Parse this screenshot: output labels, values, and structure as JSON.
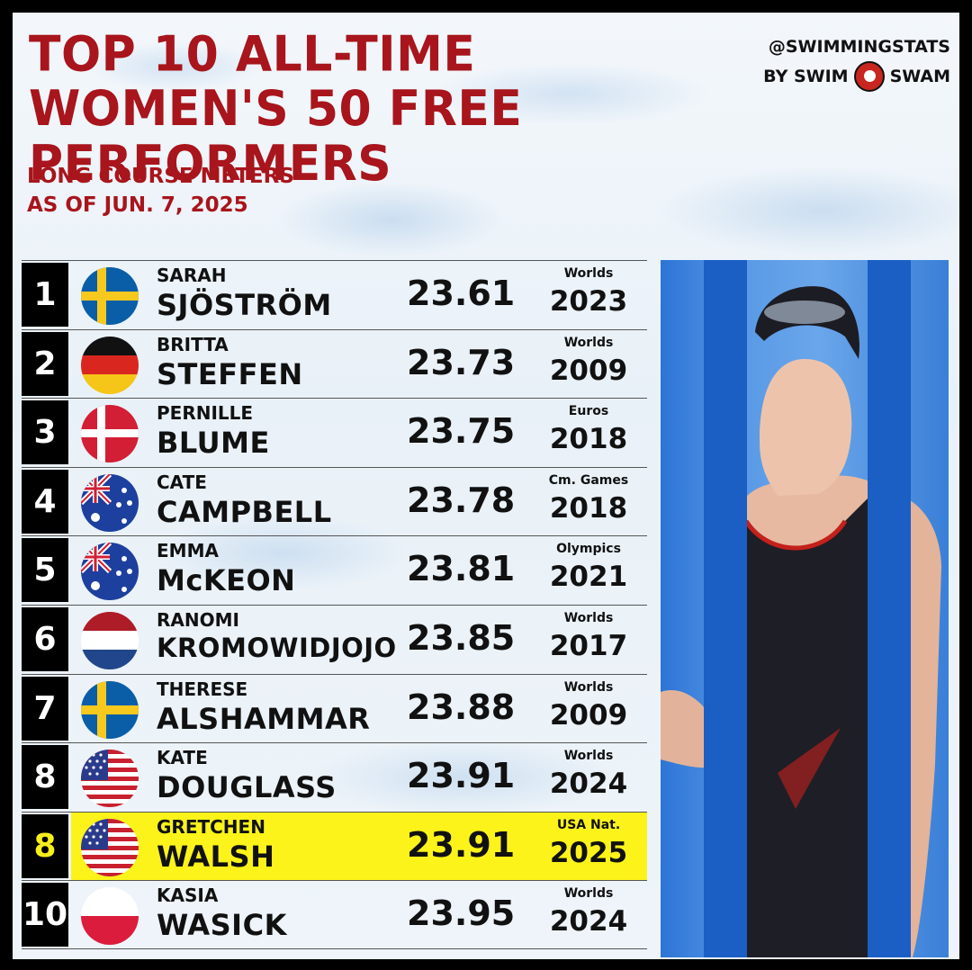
{
  "header": {
    "title_line1": "TOP 10 ALL-TIME",
    "title_line2": "WOMEN'S 50 FREE PERFORMERS",
    "subtitle_line1": "LONG COURSE METERS",
    "subtitle_line2": "AS OF JUN. 7, 2025"
  },
  "brand": {
    "handle": "@SWIMMINGSTATS",
    "by": "BY SWIM",
    "swam": "SWAM"
  },
  "colors": {
    "title_red": "#a8151c",
    "highlight_yellow": "#fbf31a",
    "rank_box": "#000000"
  },
  "rows": [
    {
      "rank": "1",
      "first": "SARAH",
      "last": "SJÖSTRÖM",
      "time": "23.61",
      "meet": "Worlds",
      "year": "2023",
      "flag": "sweden-flag-icon",
      "highlight": false
    },
    {
      "rank": "2",
      "first": "BRITTA",
      "last": "STEFFEN",
      "time": "23.73",
      "meet": "Worlds",
      "year": "2009",
      "flag": "germany-flag-icon",
      "highlight": false
    },
    {
      "rank": "3",
      "first": "PERNILLE",
      "last": "BLUME",
      "time": "23.75",
      "meet": "Euros",
      "year": "2018",
      "flag": "denmark-flag-icon",
      "highlight": false
    },
    {
      "rank": "4",
      "first": "CATE",
      "last": "CAMPBELL",
      "time": "23.78",
      "meet": "Cm. Games",
      "year": "2018",
      "flag": "australia-flag-icon",
      "highlight": false
    },
    {
      "rank": "5",
      "first": "EMMA",
      "last": "McKEON",
      "time": "23.81",
      "meet": "Olympics",
      "year": "2021",
      "flag": "australia-flag-icon",
      "highlight": false
    },
    {
      "rank": "6",
      "first": "RANOMI",
      "last": "KROMOWIDJOJO",
      "time": "23.85",
      "meet": "Worlds",
      "year": "2017",
      "flag": "netherlands-flag-icon",
      "highlight": false
    },
    {
      "rank": "7",
      "first": "THERESE",
      "last": "ALSHAMMAR",
      "time": "23.88",
      "meet": "Worlds",
      "year": "2009",
      "flag": "sweden-flag-icon",
      "highlight": false
    },
    {
      "rank": "8",
      "first": "KATE",
      "last": "DOUGLASS",
      "time": "23.91",
      "meet": "Worlds",
      "year": "2024",
      "flag": "usa-flag-icon",
      "highlight": false
    },
    {
      "rank": "8",
      "first": "GRETCHEN",
      "last": "WALSH",
      "time": "23.91",
      "meet": "USA Nat.",
      "year": "2025",
      "flag": "usa-flag-icon",
      "highlight": true
    },
    {
      "rank": "10",
      "first": "KASIA",
      "last": "WASICK",
      "time": "23.95",
      "meet": "Worlds",
      "year": "2024",
      "flag": "poland-flag-icon",
      "highlight": false
    }
  ]
}
